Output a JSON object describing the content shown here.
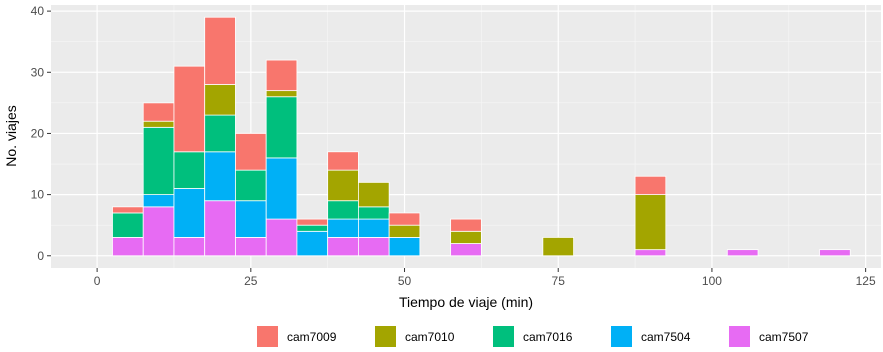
{
  "chart_data": {
    "type": "bar",
    "stacked": true,
    "title": "",
    "xlabel": "Tiempo de viaje (min)",
    "ylabel": "No. viajes",
    "xlim": [
      -7.5,
      127.5
    ],
    "ylim": [
      -2,
      41
    ],
    "xticks": [
      0,
      25,
      50,
      75,
      100,
      125
    ],
    "yticks": [
      0,
      10,
      20,
      30,
      40
    ],
    "grid": true,
    "legend_position": "bottom",
    "bin_width": 5,
    "x": [
      5,
      10,
      15,
      20,
      25,
      30,
      35,
      40,
      45,
      50,
      60,
      75,
      90,
      105,
      120
    ],
    "series": [
      {
        "name": "cam7507",
        "color": "#E76BF3",
        "values": [
          3,
          8,
          3,
          9,
          3,
          6,
          0,
          3,
          3,
          0,
          2,
          0,
          1,
          1,
          1
        ]
      },
      {
        "name": "cam7504",
        "color": "#00B0F6",
        "values": [
          0,
          2,
          8,
          8,
          6,
          10,
          4,
          3,
          3,
          3,
          0,
          0,
          0,
          0,
          0
        ]
      },
      {
        "name": "cam7016",
        "color": "#00BF7D",
        "values": [
          4,
          11,
          6,
          6,
          5,
          10,
          1,
          3,
          2,
          0,
          0,
          0,
          0,
          0,
          0
        ]
      },
      {
        "name": "cam7010",
        "color": "#A3A500",
        "values": [
          0,
          1,
          0,
          5,
          0,
          1,
          0,
          5,
          4,
          2,
          2,
          3,
          9,
          0,
          0
        ]
      },
      {
        "name": "cam7009",
        "color": "#F8766D",
        "values": [
          1,
          3,
          14,
          11,
          6,
          5,
          1,
          3,
          0,
          2,
          2,
          0,
          3,
          0,
          0
        ]
      }
    ],
    "legend_order": [
      "cam7009",
      "cam7010",
      "cam7016",
      "cam7504",
      "cam7507"
    ]
  }
}
